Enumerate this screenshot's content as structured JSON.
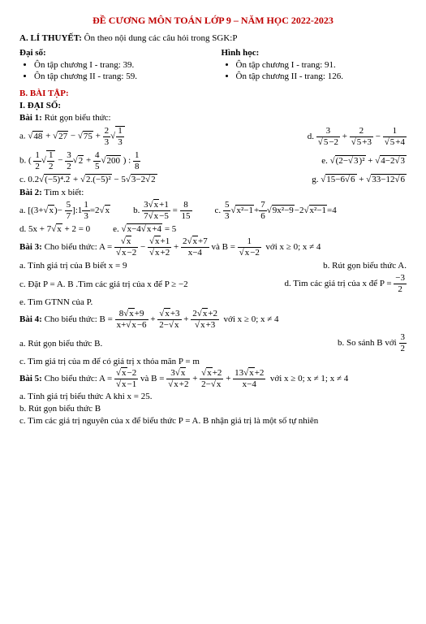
{
  "title": "ĐỀ CƯƠNG MÔN TOÁN LỚP 9 – NĂM HỌC 2022-2023",
  "ly_thuyet": {
    "heading": "A. LÍ THUYẾT:",
    "desc": "Ôn theo nội dung các câu hỏi trong SGK:P",
    "daiso_h": "Đại số:",
    "hinhhoc_h": "Hình học:",
    "ds": [
      "Ôn tập chương I  - trang: 39.",
      "Ôn tập chương II - trang: 59."
    ],
    "hh": [
      "Ôn tập chương I - trang: 91.",
      "Ôn tập chương II - trang: 126."
    ]
  },
  "baitap_h": "B. BÀI TẬP:",
  "daiso_h": "I. ĐẠI SỐ:",
  "bai1": {
    "title": "Bài 1:",
    "desc": "Rút gọn biểu thức:",
    "a": "√48 + √27 − √75 + (2/3)√(1/3)",
    "d": "3/(√5−2) + 2/(√5+3) − 1/(√5+4)",
    "b": "( (1/2)√(1/2) − (3/2)√2 + (4/5)√200 ) : 1/8",
    "e": "√((2−√3)²) + √(4−2√3)",
    "c": "0.2√((−5)⁴·2) + √(2·(−5)²) − 5√(3−2√2)",
    "g": "√(15−6√6) + √(33−12√6)"
  },
  "bai2": {
    "title": "Bài 2:",
    "desc": "Tìm x biết:",
    "a": "[ (3+√x) − 5/7 ] : 1⅓ = 2√x",
    "b": "(3√x+1)/(7√x−5) = 8/15",
    "c": "(5/3)√(x²−1) + (7/6)√(9x²−9) − 2√(x²−1) = 4",
    "d": "5x + 7√x + 2 = 0",
    "e": "√(x−4√x+4) = 5"
  },
  "bai3": {
    "title": "Bài 3:",
    "lead": "Cho biểu thức:  A =",
    "aexpr": "√x/(√x−2) − (√x+1)/(√x+2) + (2√x+7)/(x−4)",
    "and": "và B =",
    "bexpr": "1/(√x−2)",
    "cond": "với x ≥ 0; x ≠ 4",
    "q_a": "a. Tính giá trị của B biết x = 9",
    "q_b": "b. Rút gọn biểu thức A.",
    "q_c": "c. Đặt P = A. B .Tìm các giá trị của  x để P ≥ −2",
    "q_d": "d. Tìm các giá trị của x để  P = −3/2",
    "q_e": "e. Tìm GTNN của P."
  },
  "bai4": {
    "title": "Bài 4:",
    "lead": "Cho biểu thức:  B =",
    "expr": "(8√x+9)/(x+√x−6) + (√x+3)/(2−√x) + (2√x+2)/(√x+3)",
    "cond": "với x ≥ 0; x ≠ 4",
    "q_a": "a. Rút gọn biểu thức B.",
    "q_b": "b. So sánh B với 3/2",
    "q_c": "c. Tìm giá trị của m để có giá trị x thỏa mãn P = m"
  },
  "bai5": {
    "title": "Bài 5:",
    "lead": "Cho biểu thức:  A =",
    "aexpr": "(√x−2)/(√x−1)",
    "and": "và B =",
    "bexpr": "3√x/(√x+2) + (√x+2)/(2−√x) + (13√x+2)/(x−4)",
    "cond": "với x ≥ 0; x ≠ 1; x ≠ 4",
    "q_a": "a. Tính giá trị biểu thức A khi x = 25.",
    "q_b": "b. Rút gọn biểu thức B",
    "q_c": "c. Tìm các giá trị nguyên của x để biểu thức P = A. B nhận giá trị là một số tự nhiên"
  },
  "colors": {
    "accent": "#c00000",
    "text": "#000000",
    "background": "#ffffff"
  }
}
